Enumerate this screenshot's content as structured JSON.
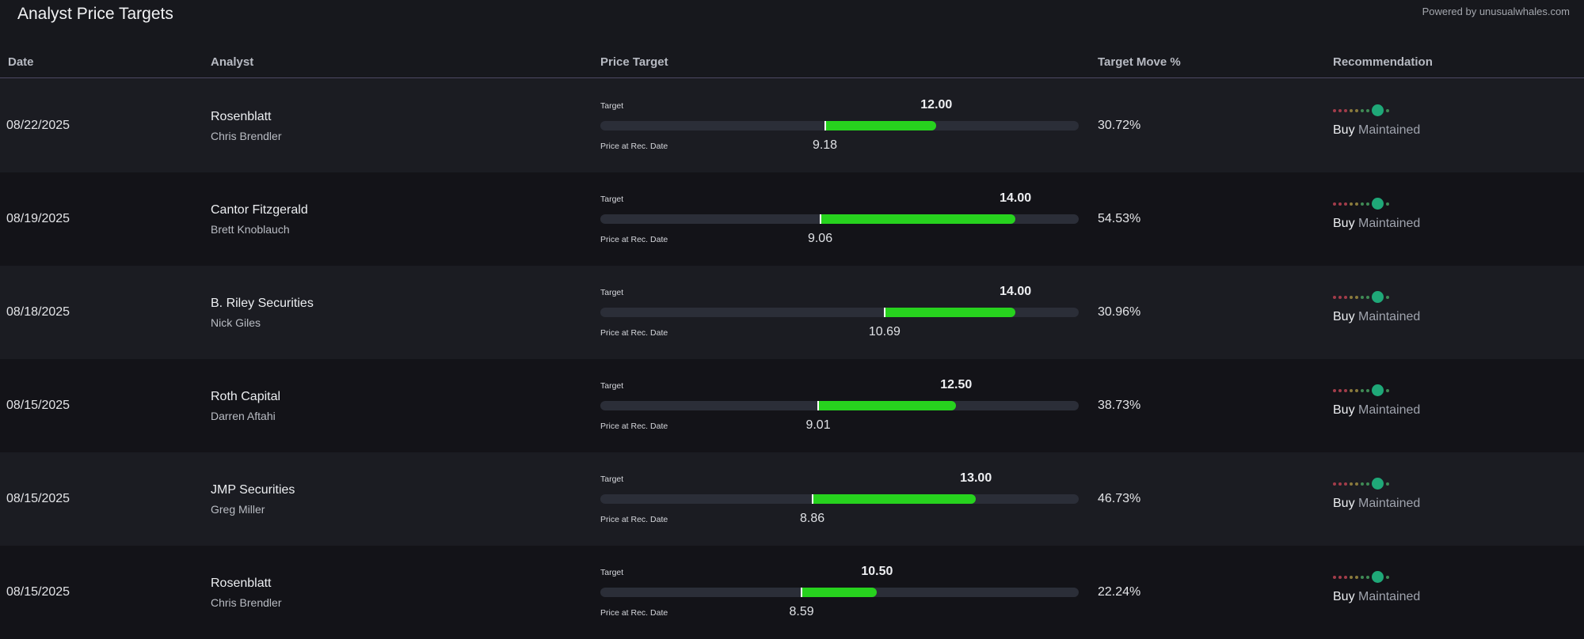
{
  "header": {
    "title": "Analyst Price Targets",
    "powered_by": "Powered by unusualwhales.com"
  },
  "columns": {
    "date": "Date",
    "analyst": "Analyst",
    "price_target": "Price Target",
    "target_move": "Target Move %",
    "recommendation": "Recommendation"
  },
  "labels": {
    "target": "Target",
    "price_at_rec": "Price at Rec. Date"
  },
  "colors": {
    "bar_fill": "#27d21e",
    "rating_active": "#1fa878",
    "rating_sell": "#a23c4a",
    "rating_hold": "#8a7a3c",
    "rating_buy": "#3f8a55"
  },
  "rating_scale_steps": 9,
  "rows": [
    {
      "date": "08/22/2025",
      "firm": "Rosenblatt",
      "analyst": "Chris Brendler",
      "target": "12.00",
      "price": "9.18",
      "move": "30.72%",
      "rating": "Buy",
      "action": "Maintained",
      "rating_position": 7
    },
    {
      "date": "08/19/2025",
      "firm": "Cantor Fitzgerald",
      "analyst": "Brett Knoblauch",
      "target": "14.00",
      "price": "9.06",
      "move": "54.53%",
      "rating": "Buy",
      "action": "Maintained",
      "rating_position": 7
    },
    {
      "date": "08/18/2025",
      "firm": "B. Riley Securities",
      "analyst": "Nick Giles",
      "target": "14.00",
      "price": "10.69",
      "move": "30.96%",
      "rating": "Buy",
      "action": "Maintained",
      "rating_position": 7
    },
    {
      "date": "08/15/2025",
      "firm": "Roth Capital",
      "analyst": "Darren Aftahi",
      "target": "12.50",
      "price": "9.01",
      "move": "38.73%",
      "rating": "Buy",
      "action": "Maintained",
      "rating_position": 7
    },
    {
      "date": "08/15/2025",
      "firm": "JMP Securities",
      "analyst": "Greg Miller",
      "target": "13.00",
      "price": "8.86",
      "move": "46.73%",
      "rating": "Buy",
      "action": "Maintained",
      "rating_position": 7
    },
    {
      "date": "08/15/2025",
      "firm": "Rosenblatt",
      "analyst": "Chris Brendler",
      "target": "10.50",
      "price": "8.59",
      "move": "22.24%",
      "rating": "Buy",
      "action": "Maintained",
      "rating_position": 7
    }
  ]
}
